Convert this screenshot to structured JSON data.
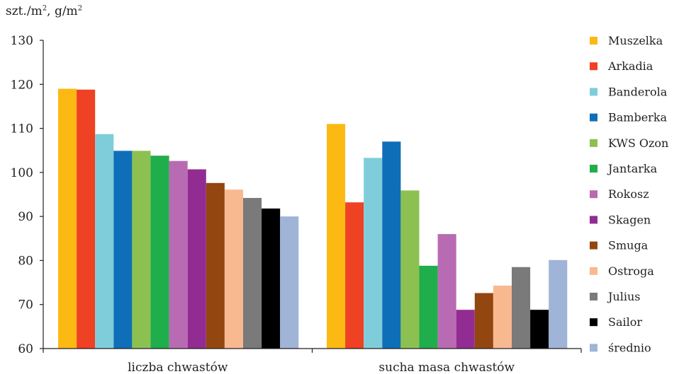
{
  "chart_data": {
    "type": "bar",
    "ylabel_parts": [
      "szt./m",
      "2",
      ", g/m",
      "2"
    ],
    "xlabel": "",
    "title": "",
    "ylim": [
      60,
      130
    ],
    "yticks": [
      60,
      70,
      80,
      90,
      100,
      110,
      120,
      130
    ],
    "grid": false,
    "legend_position": "right",
    "categories": [
      "liczba chwastów",
      "sucha masa chwastów"
    ],
    "series": [
      {
        "name": "Muszelka",
        "color": "#fdb913",
        "values": [
          119,
          111
        ]
      },
      {
        "name": "Arkadia",
        "color": "#ef4123",
        "values": [
          118.8,
          93.2
        ]
      },
      {
        "name": "Banderola",
        "color": "#7fcdda",
        "values": [
          108.7,
          103.3
        ]
      },
      {
        "name": "Bamberka",
        "color": "#0f6eb8",
        "values": [
          104.9,
          107
        ]
      },
      {
        "name": "KWS Ozon",
        "color": "#8cc152",
        "values": [
          104.9,
          95.9
        ]
      },
      {
        "name": "Jantarka",
        "color": "#1fae4b",
        "values": [
          103.8,
          78.8
        ]
      },
      {
        "name": "Rokosz",
        "color": "#b86bb3",
        "values": [
          102.6,
          86
        ]
      },
      {
        "name": "Skagen",
        "color": "#932c92",
        "values": [
          100.7,
          68.8
        ]
      },
      {
        "name": "Smuga",
        "color": "#934610",
        "values": [
          97.6,
          72.6
        ]
      },
      {
        "name": "Ostroga",
        "color": "#f9b990",
        "values": [
          96.1,
          74.3
        ]
      },
      {
        "name": "Julius",
        "color": "#7a7a7a",
        "values": [
          94.2,
          78.5
        ]
      },
      {
        "name": "Sailor",
        "color": "#000000",
        "values": [
          91.8,
          68.8
        ]
      },
      {
        "name": "średnio",
        "color": "#9fb4d6",
        "values": [
          90,
          80.1
        ]
      }
    ]
  }
}
